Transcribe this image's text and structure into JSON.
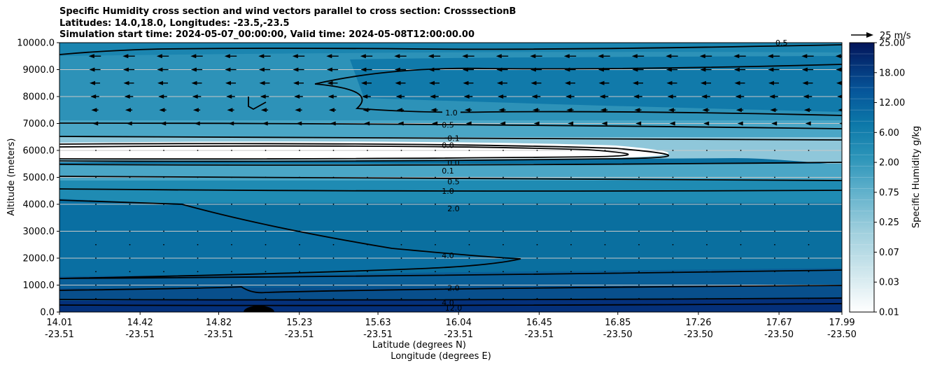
{
  "chart_data": {
    "type": "contour",
    "title_lines": [
      "Specific Humidity cross section and wind vectors parallel to cross section: CrosssectionB",
      "Latitudes: 14.0,18.0, Longitudes: -23.5,-23.5",
      "Simulation start time: 2024-05-07_00:00:00, Valid time: 2024-05-08T12:00:00.00"
    ],
    "ylabel": "Altitude (meters)",
    "xlabel_lat": "Latitude (degrees N)",
    "xlabel_lon": "Longitude (degrees E)",
    "ylim": [
      0,
      10000
    ],
    "y_ticks": [
      "0.0",
      "1000.0",
      "2000.0",
      "3000.0",
      "4000.0",
      "5000.0",
      "6000.0",
      "7000.0",
      "8000.0",
      "9000.0",
      "10000.0"
    ],
    "x_ticks": [
      {
        "lat": "14.01",
        "lon": "-23.51"
      },
      {
        "lat": "14.42",
        "lon": "-23.51"
      },
      {
        "lat": "14.82",
        "lon": "-23.51"
      },
      {
        "lat": "15.23",
        "lon": "-23.51"
      },
      {
        "lat": "15.63",
        "lon": "-23.51"
      },
      {
        "lat": "16.04",
        "lon": "-23.51"
      },
      {
        "lat": "16.45",
        "lon": "-23.51"
      },
      {
        "lat": "16.85",
        "lon": "-23.50"
      },
      {
        "lat": "17.26",
        "lon": "-23.50"
      },
      {
        "lat": "17.67",
        "lon": "-23.50"
      },
      {
        "lat": "17.99",
        "lon": "-23.50"
      }
    ],
    "colorbar_label": "Specific Humidity g/kg",
    "colorbar_ticks": [
      "0.01",
      "0.03",
      "0.07",
      "0.25",
      "0.75",
      "2.00",
      "6.00",
      "12.00",
      "18.00",
      "25.00"
    ],
    "quiver_key": "25 m/s",
    "contour_lines": [
      {
        "label": "0.5",
        "altitude": 6950
      },
      {
        "label": "0.1",
        "altitude": 6450
      },
      {
        "label": "0.0",
        "altitude": 6200
      },
      {
        "label": "0.0",
        "altitude": 5550
      },
      {
        "label": "0.1",
        "altitude": 5250
      },
      {
        "label": "0.5",
        "altitude": 4850
      },
      {
        "label": "1.0",
        "altitude": 4500
      },
      {
        "label": "2.0",
        "altitude": 3850
      },
      {
        "label": "4.0",
        "altitude": 2100
      },
      {
        "label": "2.0",
        "altitude": 900
      },
      {
        "label": "4.0",
        "altitude": 350
      },
      {
        "label": "12.0",
        "altitude": 150
      }
    ],
    "upper_label": "1.0",
    "corner_label": "0.5",
    "wind_rows_altitude": [
      9500,
      9000,
      8500,
      8000,
      7500,
      7000,
      6000,
      5000,
      4000,
      3000,
      2500,
      2000,
      1500,
      1000,
      500
    ],
    "wind_rows_speed": [
      12,
      11,
      10,
      8,
      6,
      3,
      1,
      1,
      1,
      1,
      1.5,
      1.5,
      1,
      1,
      1
    ]
  }
}
